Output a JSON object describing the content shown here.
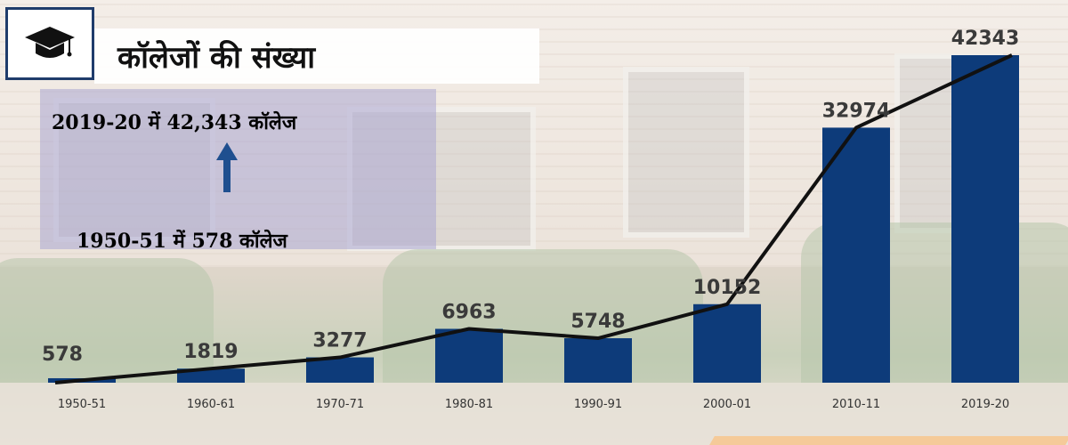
{
  "title": "कॉलेजों की संख्या",
  "info": {
    "line_top": "2019-20 में 42,343 कॉलेज",
    "line_bottom": "1950-51 में 578 कॉलेज"
  },
  "icons": {
    "title_icon": "graduation-cap-icon",
    "info_arrow": "arrow-up-icon"
  },
  "colors": {
    "bar": "#0d3b7a",
    "line": "#111111",
    "icon_border": "#1f3c6b",
    "info_box": "#aaa5d2",
    "accent_stripe": "#e98a1e"
  },
  "chart_data": {
    "type": "bar",
    "categories": [
      "1950-51",
      "1960-61",
      "1970-71",
      "1980-81",
      "1990-91",
      "2000-01",
      "2010-11",
      "2019-20"
    ],
    "values": [
      578,
      1819,
      3277,
      6963,
      5748,
      10152,
      32974,
      42343
    ],
    "overlay": "line",
    "title": "कॉलेजों की संख्या",
    "xlabel": "",
    "ylabel": "",
    "ylim": [
      0,
      45000
    ],
    "grid": false,
    "legend": "none"
  }
}
